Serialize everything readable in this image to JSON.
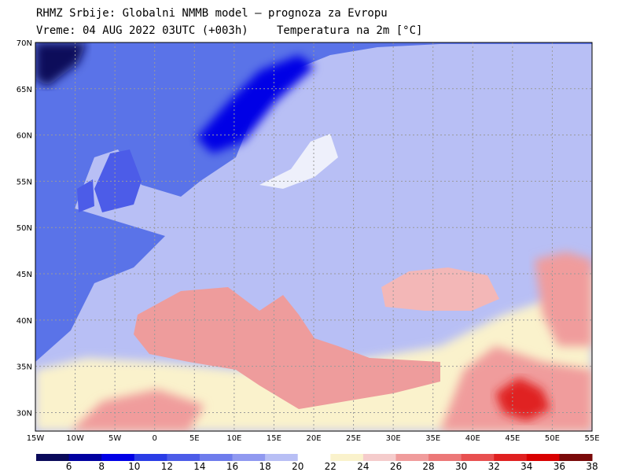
{
  "header": {
    "title": "RHMZ Srbije: Globalni NMMB model — prognoza za Evropu",
    "line2_left": "Vreme: 04 AUG 2022 03UTC (+003h)",
    "line2_right": "Temperatura na 2m [°C]"
  },
  "map": {
    "lon_range": [
      -15,
      55
    ],
    "lat_range": [
      28,
      70
    ],
    "x_ticks": [
      "15W",
      "10W",
      "5W",
      "0",
      "5E",
      "10E",
      "15E",
      "20E",
      "25E",
      "30E",
      "35E",
      "40E",
      "45E",
      "50E",
      "55E"
    ],
    "y_ticks": [
      "70N",
      "65N",
      "60N",
      "55N",
      "50N",
      "45N",
      "40N",
      "35N",
      "30N"
    ],
    "land_color": "#b8bff5",
    "sea_colors": {
      "atlantic": "#5a73e8",
      "mediterranean": "#ee9c9c",
      "black_sea": "#f3b7b7",
      "baltic": "#eef0fb"
    }
  },
  "legend": {
    "labels": [
      "6",
      "8",
      "10",
      "12",
      "14",
      "16",
      "18",
      "20",
      "22",
      "24",
      "26",
      "28",
      "30",
      "32",
      "34",
      "36",
      "38"
    ],
    "colors": [
      "#0a0a5a",
      "#0000a0",
      "#0000e6",
      "#2a3ce6",
      "#4c5ce8",
      "#6e7cec",
      "#9099f0",
      "#b8bff5",
      "#ffffff",
      "#faf2cc",
      "#f5cccc",
      "#f09c9c",
      "#ec7878",
      "#e85050",
      "#e02020",
      "#d80000",
      "#7a0a0a"
    ]
  }
}
